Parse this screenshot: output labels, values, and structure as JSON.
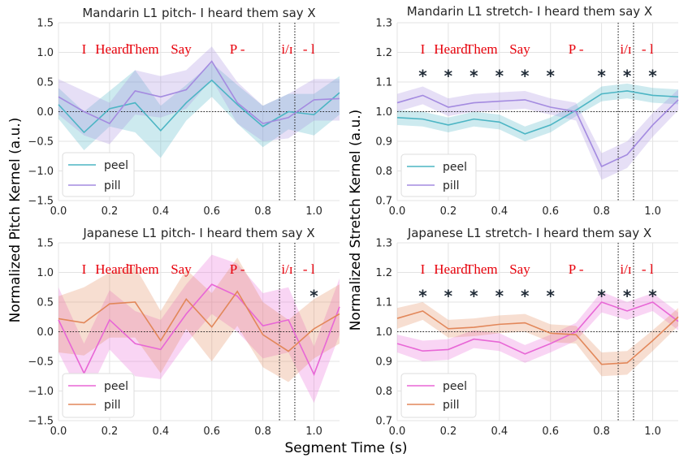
{
  "figure": {
    "xlabel": "Segment Time (s)",
    "ylabel_left": "Normalized Pitch Kernel (a.u.)",
    "ylabel_right": "Normalized Stretch Kernel (a.u.)",
    "colors": {
      "mandarin_peel": "#4cb5c4",
      "mandarin_pill": "#a48be0",
      "japanese_peel": "#e867d6",
      "japanese_pill": "#e2875a",
      "word_labels": "#e8000b"
    }
  },
  "chart_data": [
    {
      "type": "line",
      "title": "Mandarin  L1 pitch- I heard them say X",
      "xlim": [
        0,
        1.1
      ],
      "ylim": [
        -1.5,
        1.5
      ],
      "xticks": [
        "0.0",
        "0.2",
        "0.4",
        "0.6",
        "0.8",
        "1.0"
      ],
      "yticks": [
        "−1.5",
        "−1.0",
        "−0.5",
        "0.0",
        "0.5",
        "1.0",
        "1.5"
      ],
      "word_labels": [
        "I",
        "Heard",
        "Them",
        "Say",
        "P -",
        "i/ɪ",
        "- l"
      ],
      "stars": [],
      "grid": true,
      "legend": "lower-left",
      "reference_y": 0.0,
      "boundary_x": [
        0.865,
        0.925
      ],
      "x": [
        0.0,
        0.1,
        0.2,
        0.3,
        0.4,
        0.5,
        0.6,
        0.7,
        0.8,
        0.9,
        1.0,
        1.1
      ],
      "series": [
        {
          "name": "peel",
          "values": [
            0.12,
            -0.35,
            0.05,
            0.15,
            -0.32,
            0.15,
            0.53,
            0.12,
            -0.25,
            0.0,
            -0.05,
            0.32
          ],
          "lower": [
            -0.12,
            -0.65,
            -0.25,
            -0.35,
            -0.78,
            -0.15,
            0.25,
            -0.2,
            -0.6,
            -0.3,
            -0.4,
            -0.05
          ],
          "upper": [
            0.4,
            0.0,
            0.35,
            0.7,
            0.1,
            0.45,
            0.82,
            0.45,
            0.1,
            0.3,
            0.3,
            0.6
          ]
        },
        {
          "name": "pill",
          "values": [
            0.25,
            0.0,
            -0.2,
            0.35,
            0.25,
            0.37,
            0.85,
            0.15,
            -0.2,
            -0.1,
            0.2,
            0.22
          ],
          "lower": [
            -0.05,
            -0.4,
            -0.55,
            -0.05,
            -0.1,
            0.05,
            0.55,
            -0.2,
            -0.5,
            -0.45,
            -0.15,
            -0.15
          ],
          "upper": [
            0.55,
            0.35,
            0.15,
            0.7,
            0.6,
            0.7,
            1.1,
            0.5,
            0.1,
            0.3,
            0.55,
            0.55
          ]
        }
      ]
    },
    {
      "type": "line",
      "title": "Mandarin L1 stretch- I heard them say X",
      "xlim": [
        0,
        1.1
      ],
      "ylim": [
        0.7,
        1.3
      ],
      "xticks": [
        "0.0",
        "0.2",
        "0.4",
        "0.6",
        "0.8",
        "1.0"
      ],
      "yticks": [
        "0.7",
        "0.8",
        "0.9",
        "1.0",
        "1.1",
        "1.2",
        "1.3"
      ],
      "word_labels": [
        "I",
        "Heard",
        "Them",
        "Say",
        "P -",
        "i/ɪ",
        "- l"
      ],
      "stars": [
        0.1,
        0.2,
        0.3,
        0.4,
        0.5,
        0.6,
        0.8,
        0.9,
        1.0
      ],
      "grid": true,
      "legend": "lower-left",
      "reference_y": 1.0,
      "boundary_x": [
        0.865,
        0.925
      ],
      "x": [
        0.0,
        0.1,
        0.2,
        0.3,
        0.4,
        0.5,
        0.6,
        0.7,
        0.8,
        0.9,
        1.0,
        1.1
      ],
      "series": [
        {
          "name": "peel",
          "values": [
            0.98,
            0.975,
            0.955,
            0.975,
            0.965,
            0.925,
            0.955,
            1.005,
            1.06,
            1.07,
            1.055,
            1.05
          ],
          "lower": [
            0.955,
            0.95,
            0.93,
            0.95,
            0.94,
            0.9,
            0.93,
            0.985,
            1.035,
            1.045,
            1.03,
            1.025
          ],
          "upper": [
            1.005,
            1.0,
            0.98,
            1.0,
            0.99,
            0.95,
            0.98,
            1.025,
            1.085,
            1.095,
            1.08,
            1.075
          ]
        },
        {
          "name": "pill",
          "values": [
            1.03,
            1.055,
            1.015,
            1.03,
            1.035,
            1.04,
            1.015,
            1.0,
            0.815,
            0.855,
            0.955,
            1.04
          ],
          "lower": [
            1.0,
            1.025,
            0.985,
            1.0,
            1.005,
            1.01,
            0.99,
            0.97,
            0.77,
            0.81,
            0.915,
            1.005
          ],
          "upper": [
            1.06,
            1.085,
            1.045,
            1.06,
            1.065,
            1.07,
            1.045,
            1.03,
            0.86,
            0.9,
            0.995,
            1.075
          ]
        }
      ]
    },
    {
      "type": "line",
      "title": "Japanese L1 pitch- I heard them say X",
      "xlim": [
        0,
        1.1
      ],
      "ylim": [
        -1.5,
        1.5
      ],
      "xticks": [
        "0.0",
        "0.2",
        "0.4",
        "0.6",
        "0.8",
        "1.0"
      ],
      "yticks": [
        "−1.5",
        "−1.0",
        "−0.5",
        "0.0",
        "0.5",
        "1.0",
        "1.5"
      ],
      "word_labels": [
        "I",
        "Heard",
        "Them",
        "Say",
        "P -",
        "i/ɪ",
        "- l"
      ],
      "stars": [
        1.0
      ],
      "grid": true,
      "legend": "lower-left",
      "reference_y": 0.0,
      "boundary_x": [
        0.865,
        0.925
      ],
      "x": [
        0.0,
        0.1,
        0.2,
        0.3,
        0.4,
        0.5,
        0.6,
        0.7,
        0.8,
        0.9,
        1.0,
        1.1
      ],
      "series": [
        {
          "name": "peel",
          "values": [
            0.2,
            -0.7,
            0.2,
            -0.2,
            -0.3,
            0.3,
            0.8,
            0.6,
            0.1,
            0.2,
            -0.72,
            0.42
          ],
          "lower": [
            -0.35,
            -1.2,
            -0.3,
            -0.75,
            -0.8,
            -0.2,
            0.3,
            0.0,
            -0.45,
            -0.35,
            -1.2,
            -0.05
          ],
          "upper": [
            0.75,
            -0.2,
            0.7,
            0.35,
            0.2,
            0.8,
            1.3,
            1.15,
            0.65,
            0.75,
            -0.25,
            0.9
          ]
        },
        {
          "name": "pill",
          "values": [
            0.22,
            0.15,
            0.47,
            0.5,
            -0.15,
            0.55,
            0.08,
            0.68,
            -0.05,
            -0.33,
            0.05,
            0.3
          ],
          "lower": [
            -0.35,
            -0.4,
            -0.1,
            -0.1,
            -0.7,
            0.05,
            -0.5,
            0.1,
            -0.6,
            -0.85,
            -0.45,
            -0.2
          ],
          "upper": [
            0.6,
            0.75,
            1.0,
            1.1,
            0.35,
            1.05,
            0.65,
            1.25,
            0.5,
            0.2,
            0.55,
            0.8
          ]
        }
      ]
    },
    {
      "type": "line",
      "title": "Japanese L1 stretch- I heard them say X",
      "xlim": [
        0,
        1.1
      ],
      "ylim": [
        0.7,
        1.3
      ],
      "xticks": [
        "0.0",
        "0.2",
        "0.4",
        "0.6",
        "0.8",
        "1.0"
      ],
      "yticks": [
        "0.7",
        "0.8",
        "0.9",
        "1.0",
        "1.1",
        "1.2",
        "1.3"
      ],
      "word_labels": [
        "I",
        "Heard",
        "Them",
        "Say",
        "P -",
        "i/ɪ",
        "- l"
      ],
      "stars": [
        0.1,
        0.2,
        0.3,
        0.4,
        0.5,
        0.6,
        0.8,
        0.9,
        1.0
      ],
      "grid": true,
      "legend": "lower-left",
      "reference_y": 1.0,
      "boundary_x": [
        0.865,
        0.925
      ],
      "x": [
        0.0,
        0.1,
        0.2,
        0.3,
        0.4,
        0.5,
        0.6,
        0.7,
        0.8,
        0.9,
        1.0,
        1.1
      ],
      "series": [
        {
          "name": "peel",
          "values": [
            0.96,
            0.935,
            0.94,
            0.975,
            0.965,
            0.925,
            0.96,
            1.0,
            1.1,
            1.07,
            1.1,
            1.035
          ],
          "lower": [
            0.93,
            0.9,
            0.905,
            0.945,
            0.935,
            0.895,
            0.93,
            0.97,
            1.065,
            1.04,
            1.07,
            1.005
          ],
          "upper": [
            0.99,
            0.97,
            0.975,
            1.005,
            0.995,
            0.955,
            0.99,
            1.03,
            1.135,
            1.1,
            1.13,
            1.065
          ]
        },
        {
          "name": "pill",
          "values": [
            1.045,
            1.07,
            1.01,
            1.015,
            1.025,
            1.03,
            0.995,
            0.99,
            0.89,
            0.895,
            0.97,
            1.05
          ],
          "lower": [
            1.01,
            1.04,
            0.98,
            0.985,
            0.995,
            1.0,
            0.965,
            0.96,
            0.85,
            0.855,
            0.935,
            1.02
          ],
          "upper": [
            1.08,
            1.1,
            1.04,
            1.045,
            1.055,
            1.06,
            1.025,
            1.02,
            0.93,
            0.935,
            1.005,
            1.08
          ]
        }
      ]
    }
  ]
}
